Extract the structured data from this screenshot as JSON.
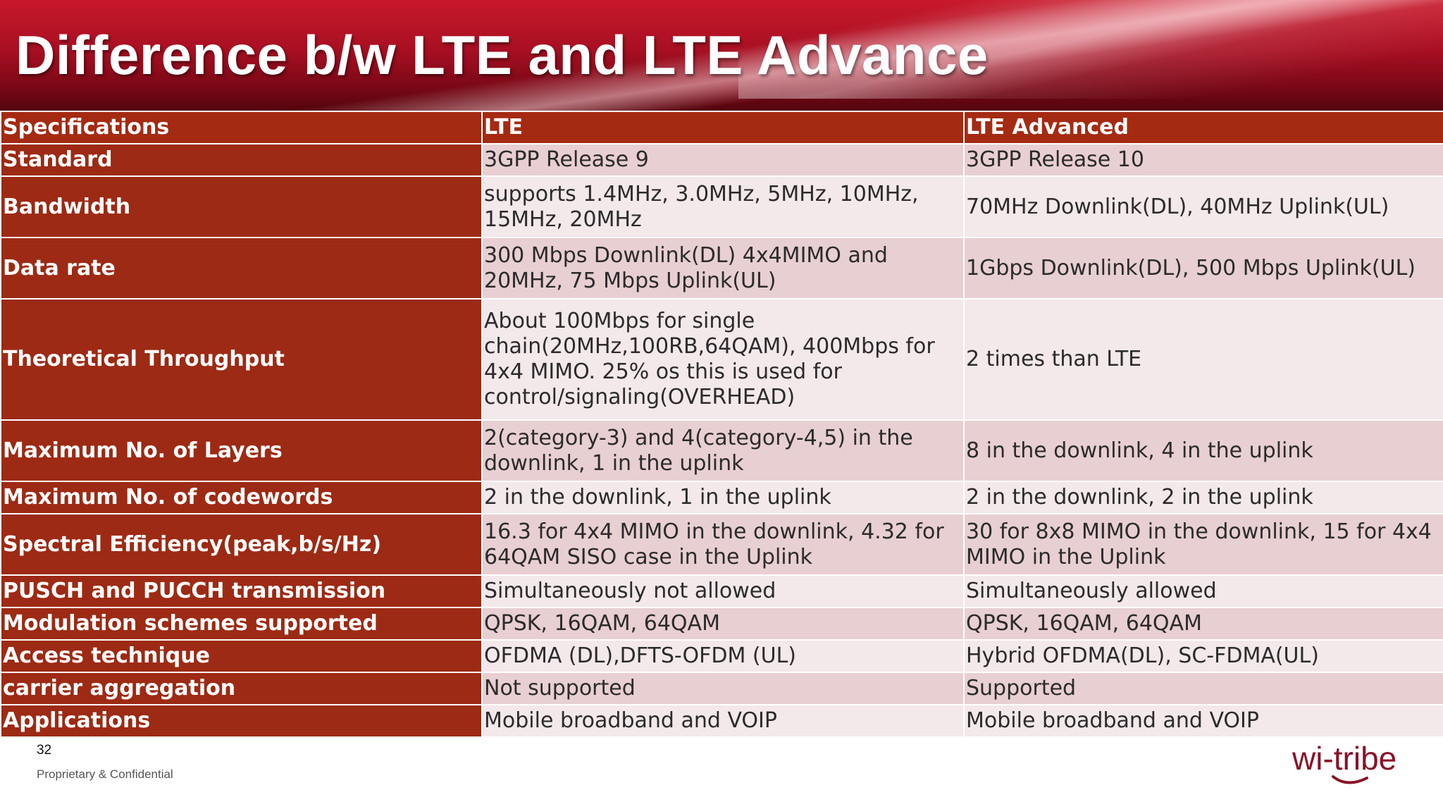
{
  "slide": {
    "title": "Difference b/w LTE and LTE Advance",
    "page_number": "32",
    "confidential": "Proprietary & Confidential",
    "logo_text": "wi-tribe"
  },
  "colors": {
    "banner_red": "#a80f22",
    "label_cell": "#9d2a14",
    "header_cell": "#a52a12",
    "row_alt_a": "#e8cfd2",
    "row_alt_b": "#f3e8ea",
    "logo": "#8a1226"
  },
  "table": {
    "headers": [
      "Specifications",
      "LTE",
      "LTE Advanced"
    ],
    "rows": [
      [
        "Standard",
        "3GPP Release 9",
        "3GPP Release 10"
      ],
      [
        "Bandwidth",
        "supports 1.4MHz, 3.0MHz, 5MHz, 10MHz, 15MHz, 20MHz",
        "70MHz Downlink(DL), 40MHz Uplink(UL)"
      ],
      [
        "Data rate",
        "300 Mbps Downlink(DL) 4x4MIMO and 20MHz, 75 Mbps Uplink(UL)",
        "1Gbps Downlink(DL), 500 Mbps Uplink(UL)"
      ],
      [
        "Theoretical Throughput",
        "About 100Mbps for single chain(20MHz,100RB,64QAM), 400Mbps for 4x4 MIMO. 25% os this is used for control/signaling(OVERHEAD)",
        "2 times than LTE"
      ],
      [
        "Maximum No. of Layers",
        "2(category-3) and 4(category-4,5) in the downlink, 1 in the uplink",
        "8 in the downlink, 4 in the uplink"
      ],
      [
        "Maximum No. of codewords",
        "2 in the downlink, 1 in the uplink",
        "2 in the downlink, 2 in the uplink"
      ],
      [
        "Spectral Efficiency(peak,b/s/Hz)",
        "16.3 for 4x4 MIMO in the downlink, 4.32 for 64QAM SISO case in the Uplink",
        "30 for 8x8 MIMO in the downlink, 15 for 4x4 MIMO in the Uplink"
      ],
      [
        "PUSCH and PUCCH transmission",
        "Simultaneously not allowed",
        "Simultaneously allowed"
      ],
      [
        "Modulation schemes supported",
        "QPSK, 16QAM, 64QAM",
        "QPSK, 16QAM, 64QAM"
      ],
      [
        "Access technique",
        "OFDMA (DL),DFTS-OFDM (UL)",
        "Hybrid OFDMA(DL), SC-FDMA(UL)"
      ],
      [
        "carrier aggregation",
        "Not supported",
        "Supported"
      ],
      [
        "Applications",
        "Mobile broadband and VOIP",
        "Mobile broadband and VOIP"
      ]
    ]
  }
}
